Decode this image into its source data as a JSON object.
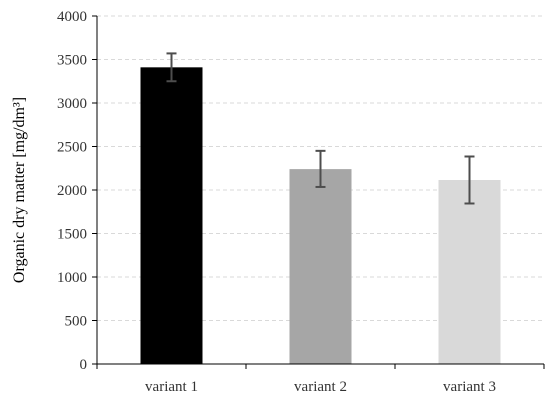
{
  "chart_data": {
    "type": "bar",
    "categories": [
      "variant 1",
      "variant 2",
      "variant 3"
    ],
    "values": [
      3410,
      2240,
      2115
    ],
    "error_upper": [
      3570,
      2450,
      2385
    ],
    "error_lower": [
      3250,
      2035,
      1845
    ],
    "bar_colors": [
      "#000000",
      "#a6a6a6",
      "#d9d9d9"
    ],
    "ylabel": "Organic dry matter  [mg/dm³]",
    "xlabel": "",
    "title": "",
    "ylim": [
      0,
      4000
    ],
    "yticks": [
      0,
      500,
      1000,
      1500,
      2000,
      2500,
      3000,
      3500,
      4000
    ],
    "grid": true
  }
}
